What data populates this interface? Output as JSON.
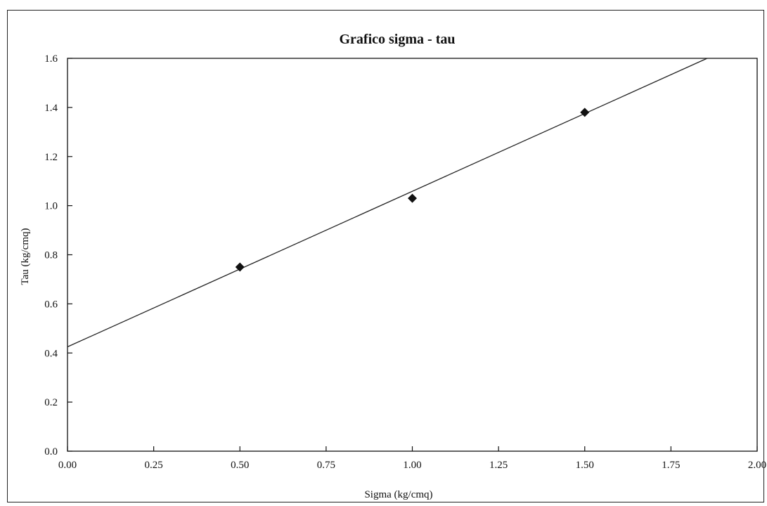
{
  "chart_data": {
    "type": "scatter",
    "title": "Grafico sigma - tau",
    "xlabel": "Sigma (kg/cmq)",
    "ylabel": "Tau (kg/cmq)",
    "xlim": [
      0,
      2
    ],
    "ylim": [
      0,
      1.6
    ],
    "x_ticks": [
      "0.00",
      "0.25",
      "0.50",
      "0.75",
      "1.00",
      "1.25",
      "1.50",
      "1.75",
      "2.00"
    ],
    "y_ticks": [
      "0.0",
      "0.2",
      "0.4",
      "0.6",
      "0.8",
      "1.0",
      "1.2",
      "1.4",
      "1.6"
    ],
    "points": [
      {
        "x": 0.5,
        "y": 0.75
      },
      {
        "x": 1.0,
        "y": 1.03
      },
      {
        "x": 1.5,
        "y": 1.38
      }
    ],
    "trendline": {
      "x0": 0.0,
      "y0": 0.425,
      "x1": 1.855,
      "y1": 1.6
    },
    "grid": false,
    "legend": "none",
    "colors": {
      "marker": "#111111",
      "line": "#222222"
    }
  }
}
